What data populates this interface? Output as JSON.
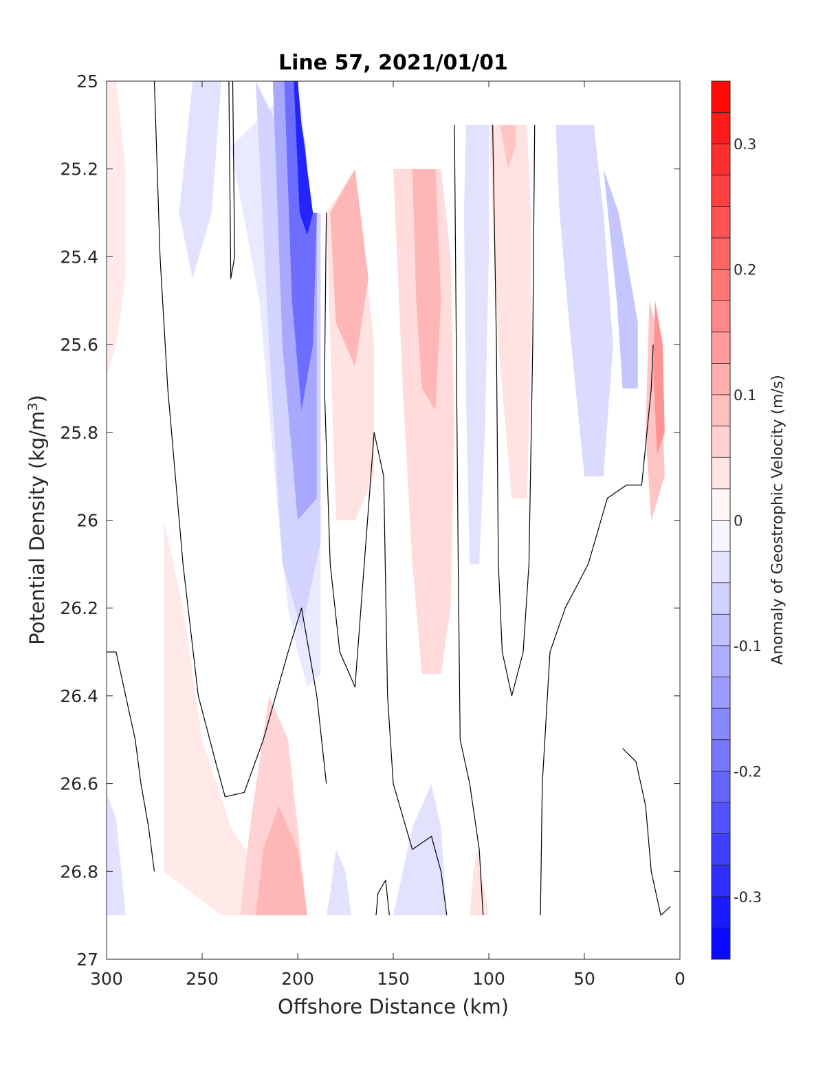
{
  "chart_data": {
    "type": "contourf",
    "title": "Line 57, 2021/01/01",
    "xlabel": "Offshore Distance (km)",
    "ylabel": {
      "main": "Potential Density (kg/m",
      "sup": "3",
      "tail": ")"
    },
    "xlim": [
      300,
      0
    ],
    "ylim": [
      25,
      27
    ],
    "x_direction": "reversed",
    "y_direction": "reversed",
    "x_ticks": [
      "300",
      "250",
      "200",
      "150",
      "100",
      "50",
      "0"
    ],
    "y_ticks": [
      "25",
      "25.2",
      "25.4",
      "25.6",
      "25.8",
      "26",
      "26.2",
      "26.4",
      "26.6",
      "26.8",
      "27"
    ],
    "grid": false,
    "colorbar": {
      "label": "Anomaly of Geostrophic Velocity (m/s)",
      "range": [
        -0.35,
        0.35
      ],
      "level_step": 0.025,
      "ticks": [
        "0.3",
        "0.2",
        "0.1",
        "0",
        "-0.1",
        "-0.2",
        "-0.3"
      ],
      "tick_values": [
        0.3,
        0.2,
        0.1,
        0,
        -0.1,
        -0.2,
        -0.3
      ],
      "cmap_negative": "#0000ff",
      "cmap_zero": "#ffffff",
      "cmap_positive": "#ff0000"
    },
    "filled_regions": [
      {
        "value": 0.03,
        "points": [
          [
            300,
            25
          ],
          [
            295,
            25
          ],
          [
            290,
            25.2
          ],
          [
            290,
            25.45
          ],
          [
            295,
            25.6
          ],
          [
            300,
            25.67
          ]
        ]
      },
      {
        "value": -0.04,
        "points": [
          [
            255,
            25
          ],
          [
            240,
            25
          ],
          [
            245,
            25.3
          ],
          [
            255,
            25.45
          ],
          [
            262,
            25.3
          ]
        ]
      },
      {
        "value": -0.03,
        "points": [
          [
            235,
            25.15
          ],
          [
            220,
            25.5
          ],
          [
            210,
            26
          ],
          [
            205,
            26.2
          ],
          [
            200,
            26.3
          ],
          [
            195,
            26.38
          ],
          [
            188,
            26.35
          ],
          [
            188,
            25.3
          ],
          [
            197,
            25.1
          ],
          [
            200,
            25
          ]
        ]
      },
      {
        "value": -0.06,
        "points": [
          [
            222,
            25
          ],
          [
            215,
            25.6
          ],
          [
            208,
            26.1
          ],
          [
            198,
            26.25
          ],
          [
            188,
            26.05
          ],
          [
            188,
            25.3
          ]
        ]
      },
      {
        "value": -0.12,
        "points": [
          [
            213,
            25
          ],
          [
            208,
            25.6
          ],
          [
            200,
            26
          ],
          [
            190,
            25.95
          ],
          [
            190,
            25.3
          ],
          [
            200,
            25.1
          ],
          [
            201,
            25
          ]
        ]
      },
      {
        "value": -0.2,
        "points": [
          [
            207,
            25
          ],
          [
            203,
            25.5
          ],
          [
            198,
            25.75
          ],
          [
            192,
            25.6
          ],
          [
            190,
            25.3
          ],
          [
            198,
            25.1
          ],
          [
            200,
            25
          ]
        ]
      },
      {
        "value": -0.3,
        "points": [
          [
            202,
            25
          ],
          [
            199,
            25.3
          ],
          [
            195,
            25.35
          ],
          [
            192,
            25.3
          ],
          [
            198,
            25.1
          ],
          [
            200,
            25
          ]
        ]
      },
      {
        "value": 0.03,
        "points": [
          [
            270,
            26
          ],
          [
            260,
            26.2
          ],
          [
            250,
            26.5
          ],
          [
            235,
            26.7
          ],
          [
            220,
            26.8
          ],
          [
            200,
            26.9
          ],
          [
            240,
            26.9
          ],
          [
            270,
            26.8
          ]
        ]
      },
      {
        "value": 0.06,
        "points": [
          [
            215,
            26.4
          ],
          [
            205,
            26.5
          ],
          [
            200,
            26.7
          ],
          [
            195,
            26.9
          ],
          [
            230,
            26.9
          ],
          [
            225,
            26.7
          ]
        ]
      },
      {
        "value": 0.1,
        "points": [
          [
            210,
            26.65
          ],
          [
            200,
            26.75
          ],
          [
            195,
            26.9
          ],
          [
            222,
            26.9
          ],
          [
            218,
            26.75
          ]
        ]
      },
      {
        "value": 0.04,
        "points": [
          [
            185,
            25.3
          ],
          [
            170,
            25.2
          ],
          [
            160,
            25.6
          ],
          [
            160,
            25.9
          ],
          [
            170,
            26
          ],
          [
            180,
            26
          ]
        ]
      },
      {
        "value": 0.1,
        "points": [
          [
            183,
            25.3
          ],
          [
            170,
            25.2
          ],
          [
            163,
            25.45
          ],
          [
            170,
            25.65
          ],
          [
            180,
            25.55
          ]
        ]
      },
      {
        "value": 0.05,
        "points": [
          [
            150,
            25.2
          ],
          [
            125,
            25.2
          ],
          [
            120,
            25.4
          ],
          [
            118,
            25.8
          ],
          [
            120,
            26.2
          ],
          [
            125,
            26.35
          ],
          [
            135,
            26.35
          ],
          [
            140,
            26.1
          ],
          [
            145,
            25.7
          ],
          [
            148,
            25.4
          ]
        ]
      },
      {
        "value": 0.1,
        "points": [
          [
            140,
            25.2
          ],
          [
            128,
            25.2
          ],
          [
            125,
            25.5
          ],
          [
            128,
            25.75
          ],
          [
            135,
            25.7
          ],
          [
            138,
            25.5
          ]
        ]
      },
      {
        "value": 0.04,
        "points": [
          [
            100,
            25.1
          ],
          [
            80,
            25.1
          ],
          [
            78,
            25.3
          ],
          [
            78,
            25.6
          ],
          [
            80,
            25.95
          ],
          [
            88,
            25.95
          ],
          [
            95,
            25.6
          ],
          [
            98,
            25.3
          ]
        ]
      },
      {
        "value": 0.08,
        "points": [
          [
            94,
            25.1
          ],
          [
            86,
            25.1
          ],
          [
            86,
            25.15
          ],
          [
            90,
            25.2
          ]
        ]
      },
      {
        "value": -0.04,
        "points": [
          [
            112,
            25.1
          ],
          [
            100,
            25.1
          ],
          [
            100,
            25.4
          ],
          [
            102,
            25.8
          ],
          [
            105,
            26.1
          ],
          [
            110,
            26.1
          ],
          [
            112,
            25.7
          ],
          [
            113,
            25.3
          ]
        ]
      },
      {
        "value": -0.05,
        "points": [
          [
            65,
            25.1
          ],
          [
            45,
            25.1
          ],
          [
            40,
            25.3
          ],
          [
            35,
            25.6
          ],
          [
            40,
            25.9
          ],
          [
            50,
            25.9
          ],
          [
            58,
            25.55
          ],
          [
            63,
            25.3
          ]
        ]
      },
      {
        "value": -0.08,
        "points": [
          [
            40,
            25.2
          ],
          [
            33,
            25.5
          ],
          [
            30,
            25.7
          ],
          [
            22,
            25.7
          ],
          [
            22,
            25.55
          ],
          [
            32,
            25.3
          ]
        ]
      },
      {
        "value": 0.08,
        "points": [
          [
            16,
            25.5
          ],
          [
            10,
            25.6
          ],
          [
            8,
            25.9
          ],
          [
            15,
            26
          ],
          [
            18,
            25.8
          ]
        ]
      },
      {
        "value": 0.15,
        "points": [
          [
            13,
            25.5
          ],
          [
            9,
            25.6
          ],
          [
            8,
            25.8
          ],
          [
            12,
            25.85
          ],
          [
            14,
            25.65
          ]
        ]
      },
      {
        "value": -0.04,
        "points": [
          [
            300,
            26.62
          ],
          [
            295,
            26.68
          ],
          [
            290,
            26.9
          ],
          [
            300,
            26.9
          ]
        ]
      },
      {
        "value": -0.04,
        "points": [
          [
            180,
            26.75
          ],
          [
            175,
            26.8
          ],
          [
            172,
            26.9
          ],
          [
            185,
            26.9
          ],
          [
            183,
            26.85
          ]
        ]
      },
      {
        "value": -0.04,
        "points": [
          [
            150,
            26.9
          ],
          [
            140,
            26.7
          ],
          [
            130,
            26.6
          ],
          [
            125,
            26.7
          ],
          [
            122,
            26.9
          ]
        ]
      },
      {
        "value": 0.04,
        "points": [
          [
            106,
            26.75
          ],
          [
            104,
            26.8
          ],
          [
            100,
            26.9
          ],
          [
            110,
            26.9
          ],
          [
            108,
            26.8
          ]
        ]
      }
    ],
    "masked_regions": [
      {
        "points": [
          [
            200,
            25
          ],
          [
            197,
            25.1
          ],
          [
            195,
            25.2
          ],
          [
            192,
            25.3
          ],
          [
            185,
            25.3
          ],
          [
            182,
            25.2
          ],
          [
            150,
            25.2
          ],
          [
            125,
            25.2
          ],
          [
            120,
            25.1
          ],
          [
            100,
            25.1
          ],
          [
            50,
            25.1
          ],
          [
            50,
            25
          ],
          [
            200,
            25
          ]
        ]
      },
      {
        "points": [
          [
            300,
            26.9
          ],
          [
            0,
            26.9
          ],
          [
            0,
            27
          ],
          [
            300,
            27
          ]
        ]
      }
    ],
    "zero_contours": [
      {
        "points": [
          [
            275,
            25
          ],
          [
            272,
            25.4
          ],
          [
            268,
            25.7
          ],
          [
            260,
            26.1
          ],
          [
            252,
            26.4
          ],
          [
            243,
            26.55
          ],
          [
            238,
            26.63
          ],
          [
            228,
            26.62
          ],
          [
            218,
            26.5
          ],
          [
            205,
            26.3
          ],
          [
            198,
            26.2
          ],
          [
            190,
            26.4
          ],
          [
            185,
            26.6
          ]
        ]
      },
      {
        "points": [
          [
            300,
            26.3
          ],
          [
            295,
            26.3
          ],
          [
            290,
            26.4
          ],
          [
            285,
            26.5
          ],
          [
            282,
            26.6
          ],
          [
            278,
            26.7
          ],
          [
            275,
            26.8
          ]
        ]
      },
      {
        "points": [
          [
            234,
            25
          ],
          [
            233,
            25.4
          ],
          [
            235,
            25.45
          ],
          [
            236,
            25
          ]
        ]
      },
      {
        "points": [
          [
            185,
            25.3
          ],
          [
            186,
            25.7
          ],
          [
            183,
            26.1
          ],
          [
            178,
            26.3
          ],
          [
            170,
            26.38
          ],
          [
            160,
            25.8
          ],
          [
            155,
            25.9
          ],
          [
            153,
            26.4
          ],
          [
            150,
            26.6
          ],
          [
            140,
            26.75
          ],
          [
            130,
            26.72
          ],
          [
            125,
            26.8
          ],
          [
            122,
            26.9
          ]
        ]
      },
      {
        "points": [
          [
            118,
            25.1
          ],
          [
            117,
            25.6
          ],
          [
            116,
            26.1
          ],
          [
            115,
            26.5
          ],
          [
            110,
            26.6
          ],
          [
            105,
            26.75
          ],
          [
            103,
            26.9
          ]
        ]
      },
      {
        "points": [
          [
            98,
            25.1
          ],
          [
            96,
            25.6
          ],
          [
            95,
            26.1
          ],
          [
            93,
            26.3
          ],
          [
            88,
            26.4
          ],
          [
            82,
            26.3
          ],
          [
            79,
            26.1
          ],
          [
            77,
            25.6
          ],
          [
            76,
            25.1
          ]
        ]
      },
      {
        "points": [
          [
            73,
            26.9
          ],
          [
            72,
            26.6
          ],
          [
            68,
            26.3
          ],
          [
            60,
            26.2
          ],
          [
            48,
            26.1
          ],
          [
            38,
            25.95
          ],
          [
            28,
            25.92
          ],
          [
            20,
            25.92
          ],
          [
            15,
            25.7
          ],
          [
            14,
            25.6
          ]
        ]
      },
      {
        "points": [
          [
            30,
            26.52
          ],
          [
            23,
            26.55
          ],
          [
            18,
            26.65
          ],
          [
            15,
            26.8
          ],
          [
            10,
            26.9
          ],
          [
            5,
            26.88
          ]
        ]
      },
      {
        "points": [
          [
            159,
            26.9
          ],
          [
            158,
            26.85
          ],
          [
            154,
            26.82
          ],
          [
            152,
            26.9
          ]
        ]
      }
    ]
  }
}
